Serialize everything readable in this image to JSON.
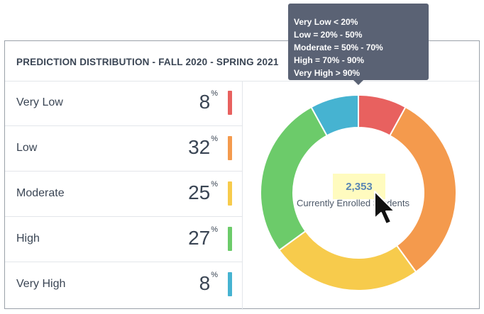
{
  "card": {
    "title": "PREDICTION DISTRIBUTION - FALL 2020 - SPRING 2021"
  },
  "categories": [
    {
      "label": "Very Low",
      "value": "8",
      "unit": "%",
      "color": "#e8615f"
    },
    {
      "label": "Low",
      "value": "32",
      "unit": "%",
      "color": "#f49a4d"
    },
    {
      "label": "Moderate",
      "value": "25",
      "unit": "%",
      "color": "#f7cb4c"
    },
    {
      "label": "High",
      "value": "27",
      "unit": "%",
      "color": "#6ccb6a"
    },
    {
      "label": "Very High",
      "value": "8",
      "unit": "%",
      "color": "#46b3d1"
    }
  ],
  "tooltip": {
    "lines": [
      "Very Low < 20%",
      "Low = 20% - 50%",
      "Moderate = 50% - 70%",
      "High = 70% - 90%",
      "Very High > 90%"
    ]
  },
  "donut": {
    "center_count": "2,353",
    "center_label": "Currently Enrolled Students"
  },
  "colors": {
    "tooltip_bg": "#5a6274",
    "highlight": "#fffbbf",
    "count_text": "#5a86b4"
  }
}
